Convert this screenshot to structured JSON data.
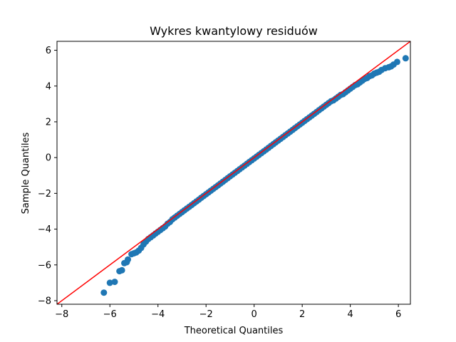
{
  "chart_data": {
    "type": "scatter",
    "title": "Wykres kwantylowy residuów",
    "xlabel": "Theoretical Quantiles",
    "ylabel": "Sample Quantiles",
    "xlim": [
      -8.2,
      6.5
    ],
    "ylim": [
      -8.2,
      6.5
    ],
    "xticks": [
      -8,
      -6,
      -4,
      -2,
      0,
      2,
      4,
      6
    ],
    "yticks": [
      -8,
      -6,
      -4,
      -2,
      0,
      2,
      4,
      6
    ],
    "grid": false,
    "reference_line": {
      "slope": 1,
      "intercept": 0,
      "color": "#ff0000"
    },
    "marker_color": "#1f77b4",
    "points": [
      [
        -6.25,
        -7.55
      ],
      [
        -6.0,
        -7.0
      ],
      [
        -5.8,
        -6.95
      ],
      [
        -5.6,
        -6.35
      ],
      [
        -5.5,
        -6.3
      ],
      [
        -5.4,
        -5.9
      ],
      [
        -5.3,
        -5.85
      ],
      [
        -5.25,
        -5.7
      ],
      [
        -5.1,
        -5.4
      ],
      [
        -5.0,
        -5.35
      ],
      [
        -4.9,
        -5.3
      ],
      [
        -4.8,
        -5.2
      ],
      [
        -4.7,
        -5.05
      ],
      [
        -4.6,
        -4.85
      ],
      [
        -4.5,
        -4.7
      ],
      [
        -4.4,
        -4.55
      ],
      [
        -4.3,
        -4.45
      ],
      [
        -4.2,
        -4.35
      ],
      [
        -4.1,
        -4.25
      ],
      [
        -4.0,
        -4.15
      ],
      [
        -3.9,
        -4.05
      ],
      [
        -3.8,
        -3.95
      ],
      [
        -3.7,
        -3.85
      ],
      [
        -3.6,
        -3.7
      ],
      [
        -3.5,
        -3.6
      ],
      [
        -3.4,
        -3.45
      ],
      [
        -3.3,
        -3.35
      ],
      [
        -3.2,
        -3.25
      ],
      [
        -3.1,
        -3.15
      ],
      [
        -3.0,
        -3.05
      ],
      [
        -2.9,
        -2.95
      ],
      [
        -2.8,
        -2.85
      ],
      [
        -2.7,
        -2.75
      ],
      [
        -2.6,
        -2.65
      ],
      [
        -2.5,
        -2.55
      ],
      [
        -2.4,
        -2.45
      ],
      [
        -2.3,
        -2.35
      ],
      [
        -2.2,
        -2.25
      ],
      [
        -2.1,
        -2.15
      ],
      [
        -2.0,
        -2.05
      ],
      [
        -1.9,
        -1.95
      ],
      [
        -1.8,
        -1.85
      ],
      [
        -1.7,
        -1.75
      ],
      [
        -1.6,
        -1.65
      ],
      [
        -1.5,
        -1.55
      ],
      [
        -1.4,
        -1.45
      ],
      [
        -1.3,
        -1.35
      ],
      [
        -1.2,
        -1.25
      ],
      [
        -1.1,
        -1.15
      ],
      [
        -1.0,
        -1.05
      ],
      [
        -0.9,
        -0.95
      ],
      [
        -0.8,
        -0.85
      ],
      [
        -0.7,
        -0.75
      ],
      [
        -0.6,
        -0.65
      ],
      [
        -0.5,
        -0.55
      ],
      [
        -0.4,
        -0.45
      ],
      [
        -0.3,
        -0.35
      ],
      [
        -0.2,
        -0.25
      ],
      [
        -0.1,
        -0.15
      ],
      [
        0.0,
        -0.05
      ],
      [
        0.1,
        0.05
      ],
      [
        0.2,
        0.15
      ],
      [
        0.3,
        0.25
      ],
      [
        0.4,
        0.35
      ],
      [
        0.5,
        0.45
      ],
      [
        0.6,
        0.55
      ],
      [
        0.7,
        0.65
      ],
      [
        0.8,
        0.75
      ],
      [
        0.9,
        0.85
      ],
      [
        1.0,
        0.95
      ],
      [
        1.1,
        1.05
      ],
      [
        1.2,
        1.15
      ],
      [
        1.3,
        1.25
      ],
      [
        1.4,
        1.35
      ],
      [
        1.5,
        1.45
      ],
      [
        1.6,
        1.55
      ],
      [
        1.7,
        1.65
      ],
      [
        1.8,
        1.75
      ],
      [
        1.9,
        1.85
      ],
      [
        2.0,
        1.95
      ],
      [
        2.1,
        2.05
      ],
      [
        2.2,
        2.15
      ],
      [
        2.3,
        2.25
      ],
      [
        2.4,
        2.35
      ],
      [
        2.5,
        2.45
      ],
      [
        2.6,
        2.55
      ],
      [
        2.7,
        2.65
      ],
      [
        2.8,
        2.75
      ],
      [
        2.9,
        2.85
      ],
      [
        3.0,
        2.95
      ],
      [
        3.1,
        3.05
      ],
      [
        3.2,
        3.15
      ],
      [
        3.3,
        3.2
      ],
      [
        3.4,
        3.3
      ],
      [
        3.5,
        3.4
      ],
      [
        3.6,
        3.5
      ],
      [
        3.7,
        3.55
      ],
      [
        3.8,
        3.65
      ],
      [
        3.9,
        3.75
      ],
      [
        4.0,
        3.85
      ],
      [
        4.1,
        3.95
      ],
      [
        4.2,
        4.05
      ],
      [
        4.3,
        4.1
      ],
      [
        4.4,
        4.2
      ],
      [
        4.5,
        4.3
      ],
      [
        4.6,
        4.4
      ],
      [
        4.7,
        4.45
      ],
      [
        4.8,
        4.55
      ],
      [
        4.9,
        4.6
      ],
      [
        5.0,
        4.7
      ],
      [
        5.1,
        4.75
      ],
      [
        5.2,
        4.8
      ],
      [
        5.3,
        4.9
      ],
      [
        5.45,
        5.0
      ],
      [
        5.6,
        5.05
      ],
      [
        5.7,
        5.1
      ],
      [
        5.8,
        5.2
      ],
      [
        5.95,
        5.35
      ],
      [
        6.3,
        5.55
      ]
    ]
  }
}
